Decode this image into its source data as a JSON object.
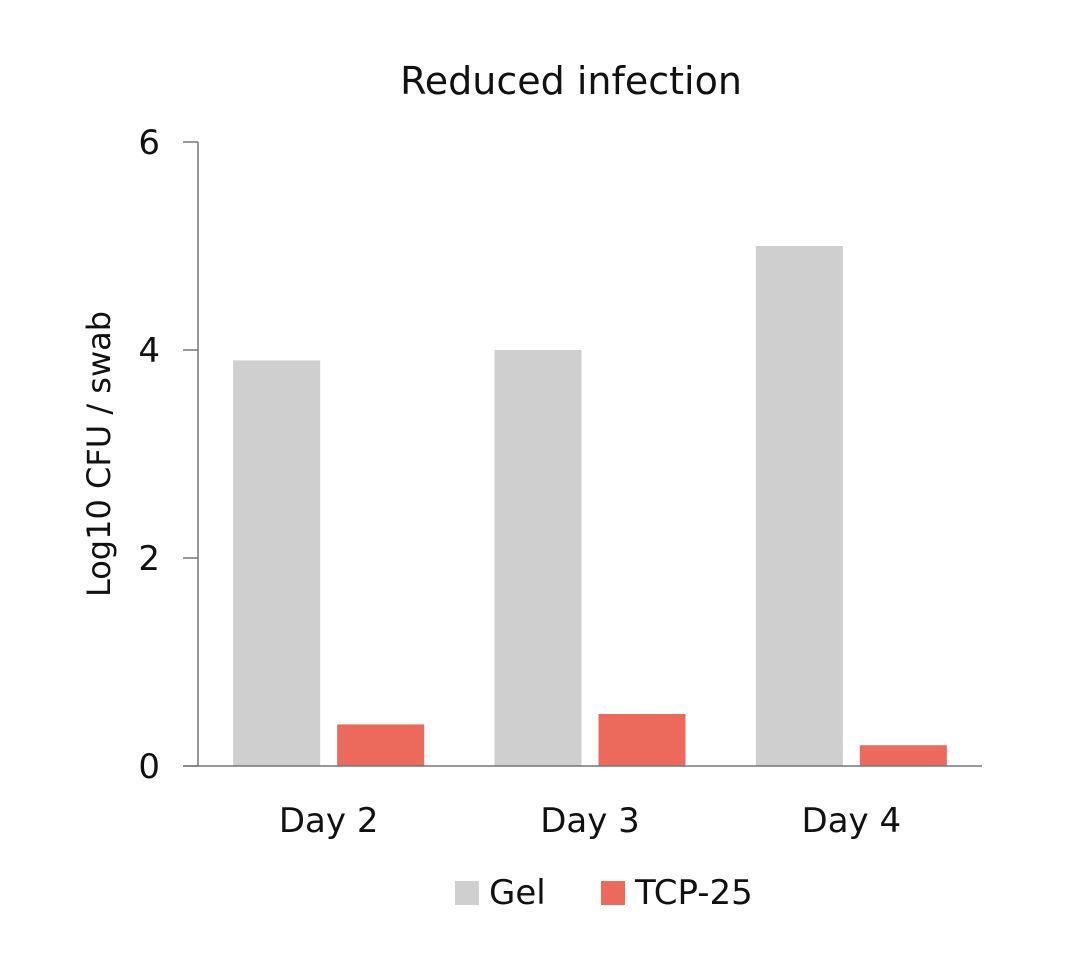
{
  "chart_data": {
    "type": "bar",
    "title": "Reduced infection",
    "xlabel": "",
    "ylabel": "Log10 CFU / swab",
    "categories": [
      "Day 2",
      "Day 3",
      "Day 4"
    ],
    "series": [
      {
        "name": "Gel",
        "values": [
          3.9,
          4.0,
          5.0
        ],
        "color": "#cfcfcf"
      },
      {
        "name": "TCP-25",
        "values": [
          0.4,
          0.5,
          0.2
        ],
        "color": "#ec6a5c"
      }
    ],
    "ylim": [
      0,
      6
    ],
    "yticks": [
      "0",
      "2",
      "4",
      "6"
    ],
    "grid": false,
    "legend_position": "bottom"
  }
}
